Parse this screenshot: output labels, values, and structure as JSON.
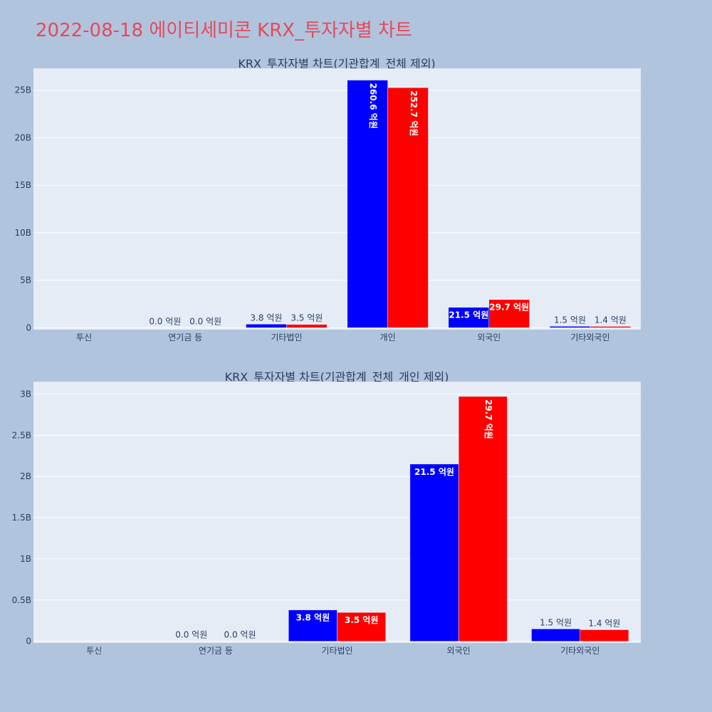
{
  "page": {
    "title": "2022-08-18 에이티세미콘 KRX_투자자별 차트"
  },
  "colors": {
    "background": "#b0c4de",
    "plot_background": "#e5ecf6",
    "gridline": "#ffffff",
    "series_buy": "#0000ff",
    "series_sell": "#ff0000",
    "title": "#e8485a",
    "axis_text": "#2a3f5f"
  },
  "chart_data": [
    {
      "type": "bar",
      "title": "KRX_투자자별 차트(기관합계_전체 제외)",
      "categories": [
        "투신",
        "연기금 등",
        "기타법인",
        "개인",
        "외국인",
        "기타외국인"
      ],
      "series": [
        {
          "color": "#0000ff",
          "values": [
            0,
            0.0,
            0.38,
            26.06,
            2.15,
            0.15
          ],
          "labels": [
            "",
            "0.0 억원",
            "3.8 억원",
            "260.6 억원",
            "21.5 억원",
            "1.5 억원"
          ]
        },
        {
          "color": "#ff0000",
          "values": [
            0,
            0.0,
            0.35,
            25.27,
            2.97,
            0.14
          ],
          "labels": [
            "",
            "0.0 억원",
            "3.5 억원",
            "252.7 억원",
            "29.7 억원",
            "1.4 억원"
          ]
        }
      ],
      "yticks": [
        0,
        5,
        10,
        15,
        20,
        25
      ],
      "ytick_labels": [
        "0",
        "5B",
        "10B",
        "15B",
        "20B",
        "25B"
      ],
      "ylim": [
        -0.2,
        27.3
      ],
      "grid": true
    },
    {
      "type": "bar",
      "title": "KRX_투자자별 차트(기관합계_전체_개인 제외)",
      "categories": [
        "투신",
        "연기금 등",
        "기타법인",
        "외국인",
        "기타외국인"
      ],
      "series": [
        {
          "color": "#0000ff",
          "values": [
            0,
            0.0,
            0.38,
            2.15,
            0.15
          ],
          "labels": [
            "",
            "0.0 억원",
            "3.8 억원",
            "21.5 억원",
            "1.5 억원"
          ]
        },
        {
          "color": "#ff0000",
          "values": [
            0,
            0.0,
            0.35,
            2.97,
            0.14
          ],
          "labels": [
            "",
            "0.0 억원",
            "3.5 억원",
            "29.7 억원",
            "1.4 억원"
          ]
        }
      ],
      "yticks": [
        0,
        0.5,
        1,
        1.5,
        2,
        2.5,
        3
      ],
      "ytick_labels": [
        "0",
        "0.5B",
        "1B",
        "1.5B",
        "2B",
        "2.5B",
        "3B"
      ],
      "ylim": [
        -0.02,
        3.15
      ],
      "grid": true
    }
  ]
}
